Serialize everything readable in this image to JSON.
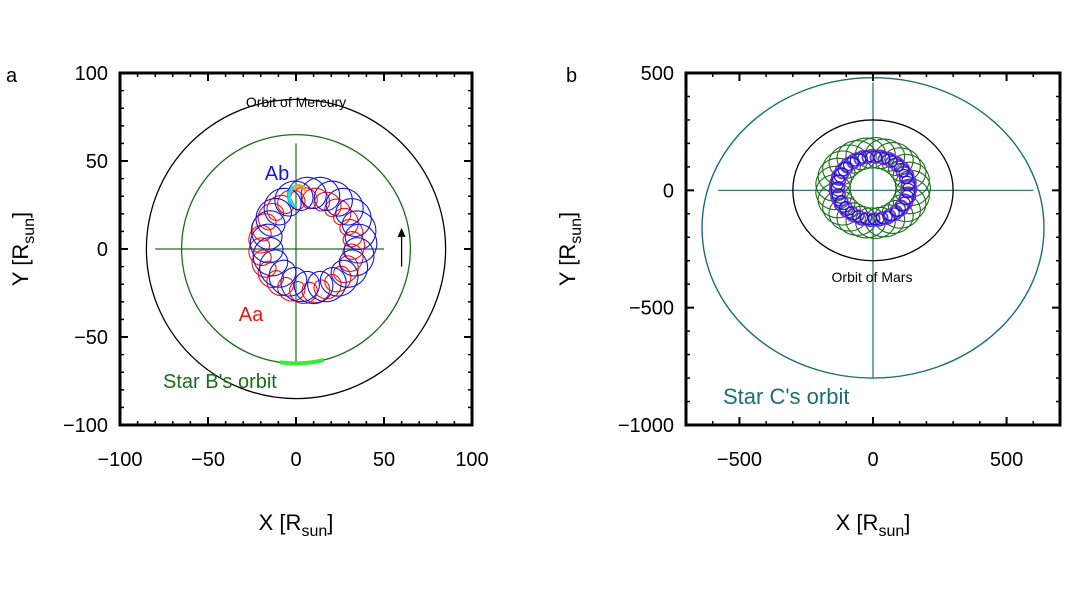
{
  "colors": {
    "aa": "#ee1111",
    "ab": "#1515dd",
    "starB": "#1a6e1a",
    "starBhl": "#33ee33",
    "cyan": "#22dddd",
    "orange": "#f5a623",
    "starC": "#1a6e73",
    "purple": "#7a2ad0",
    "black": "#000000"
  },
  "chart_data": [
    {
      "type": "line",
      "panel": "a",
      "xlabel_main": "X [R",
      "xlabel_sub": "sun",
      "xlabel_end": "]",
      "ylabel_main": "Y [R",
      "ylabel_sub": "sun",
      "ylabel_end": "]",
      "xlim": [
        -100,
        100
      ],
      "ylim": [
        -100,
        100
      ],
      "xticks": [
        -100,
        -50,
        0,
        50,
        100
      ],
      "yticks": [
        -100,
        -50,
        0,
        50,
        100
      ],
      "xtick_labels": [
        "−100",
        "−50",
        "0",
        "50",
        "100"
      ],
      "ytick_labels": [
        "−100",
        "−50",
        "0",
        "50",
        "100"
      ],
      "annotations": {
        "mercury": "Orbit of Mercury",
        "ab": "Ab",
        "aa": "Aa",
        "starB": "Star B's orbit"
      },
      "circles": [
        {
          "name": "Orbit of Mercury",
          "cx": 0,
          "cy": 0,
          "r": 85
        },
        {
          "name": "Star B's orbit",
          "cx": 0,
          "cy": 0,
          "r": 65
        }
      ],
      "series": [
        {
          "name": "Aa",
          "center": [
            6,
            2
          ],
          "R": 27,
          "r": 6,
          "loops": 24,
          "phase": 0.0
        },
        {
          "name": "Ab",
          "center": [
            10,
            5
          ],
          "R": 27,
          "r": 9,
          "loops": 22,
          "phase": 1.6
        }
      ],
      "arrow": {
        "from": [
          60,
          -10
        ],
        "to": [
          60,
          12
        ]
      }
    },
    {
      "type": "line",
      "panel": "b",
      "xlabel_main": "X [R",
      "xlabel_sub": "sun",
      "xlabel_end": "]",
      "ylabel_main": "Y [R",
      "ylabel_sub": "sun",
      "ylabel_end": "]",
      "xlim": [
        -700,
        700
      ],
      "ylim": [
        -1000,
        500
      ],
      "xticks": [
        -500,
        0,
        500
      ],
      "yticks": [
        -1000,
        -500,
        0,
        500
      ],
      "xtick_labels": [
        "−500",
        "0",
        "500"
      ],
      "ytick_labels": [
        "−1000",
        "−500",
        "0",
        "500"
      ],
      "annotations": {
        "mars": "Orbit of Mars",
        "starC": "Star C's orbit"
      },
      "circles": [
        {
          "name": "Star C's orbit",
          "cx": 0,
          "cy": -160,
          "r": 640
        },
        {
          "name": "Orbit of Mars",
          "cx": 0,
          "cy": 0,
          "r": 300
        }
      ],
      "series": [
        {
          "name": "Star B",
          "center": [
            0,
            10
          ],
          "R": 150,
          "r": 65,
          "loops": 26,
          "phase": 0.0
        },
        {
          "name": "Aa",
          "center": [
            0,
            10
          ],
          "R": 135,
          "r": 28,
          "loops": 28,
          "phase": 0.8
        },
        {
          "name": "Ab",
          "center": [
            0,
            10
          ],
          "R": 135,
          "r": 22,
          "loops": 28,
          "phase": 2.2
        }
      ]
    }
  ]
}
